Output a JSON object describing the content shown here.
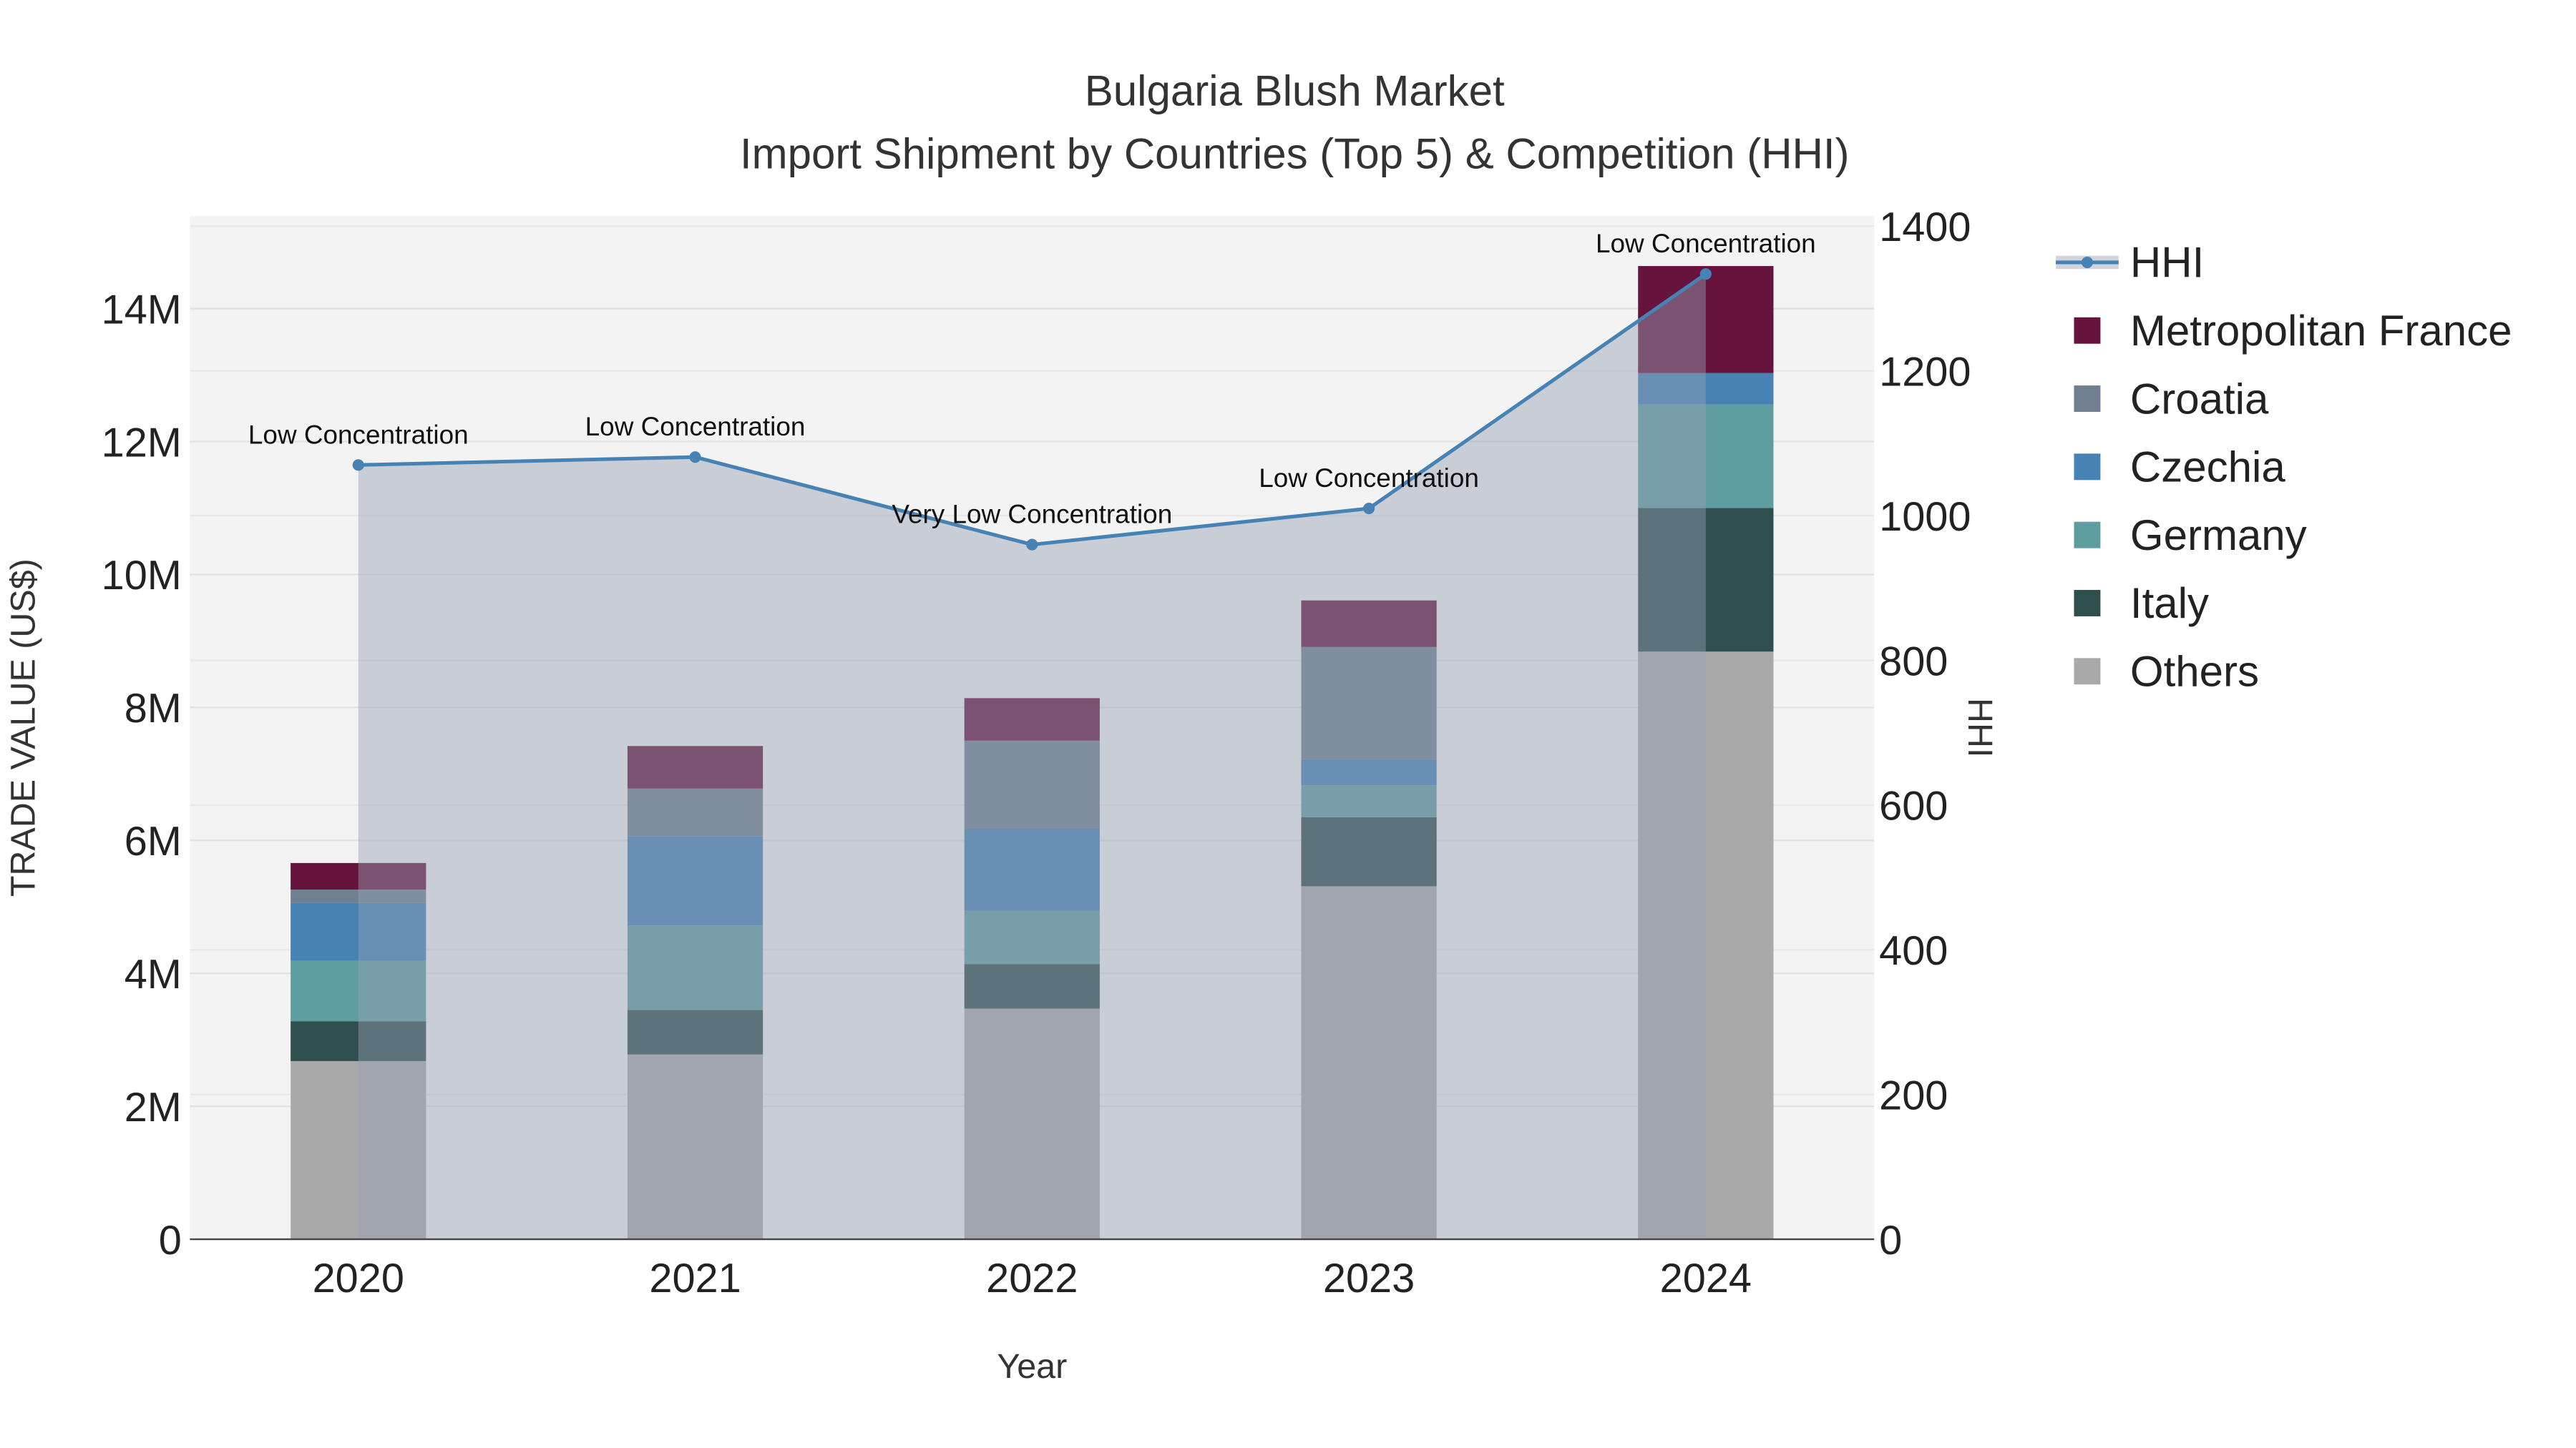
{
  "chart_data": {
    "type": "bar",
    "stacked": true,
    "title": "Bulgaria Blush Market",
    "subtitle": "Import Shipment by Countries (Top 5) & Competition (HHI)",
    "xlabel": "Year",
    "ylabel": "TRADE VALUE (US$)",
    "y2label": "HHI",
    "categories": [
      "2020",
      "2021",
      "2022",
      "2023",
      "2024"
    ],
    "ylim": [
      0,
      15300000
    ],
    "y_ticks": [
      0,
      2000000,
      4000000,
      6000000,
      8000000,
      10000000,
      12000000,
      14000000
    ],
    "y_tick_labels": [
      "0",
      "2M",
      "4M",
      "6M",
      "8M",
      "10M",
      "12M",
      "14M"
    ],
    "y2lim": [
      0,
      1400
    ],
    "y2_ticks": [
      0,
      200,
      400,
      600,
      800,
      1000,
      1200,
      1400
    ],
    "y2_tick_labels": [
      "0",
      "200",
      "400",
      "600",
      "800",
      "1000",
      "1200",
      "1400"
    ],
    "grid": true,
    "legend_position": "right",
    "series": [
      {
        "name": "Others",
        "color": "#a9a9a9",
        "values": [
          2680000,
          2780000,
          3470000,
          5310000,
          8840000
        ]
      },
      {
        "name": "Italy",
        "color": "#2f4f4f",
        "values": [
          600000,
          670000,
          670000,
          1040000,
          2160000
        ]
      },
      {
        "name": "Germany",
        "color": "#5f9ea0",
        "values": [
          910000,
          1270000,
          800000,
          480000,
          1560000
        ]
      },
      {
        "name": "Czechia",
        "color": "#4682b4",
        "values": [
          870000,
          1340000,
          1240000,
          390000,
          470000
        ]
      },
      {
        "name": "Croatia",
        "color": "#708090",
        "values": [
          200000,
          720000,
          1320000,
          1690000,
          0
        ]
      },
      {
        "name": "Metropolitan France",
        "color": "#66133d",
        "values": [
          400000,
          640000,
          640000,
          700000,
          1610000
        ]
      }
    ],
    "hhi": {
      "name": "HHI",
      "color": "#4682b4",
      "values": [
        1070,
        1081,
        960,
        1010,
        1334
      ],
      "annotations": [
        "Low Concentration",
        "Low Concentration",
        "Very Low Concentration",
        "Low Concentration",
        "Low Concentration"
      ]
    },
    "legend_order": [
      "HHI",
      "Metropolitan France",
      "Croatia",
      "Czechia",
      "Germany",
      "Italy",
      "Others"
    ]
  }
}
